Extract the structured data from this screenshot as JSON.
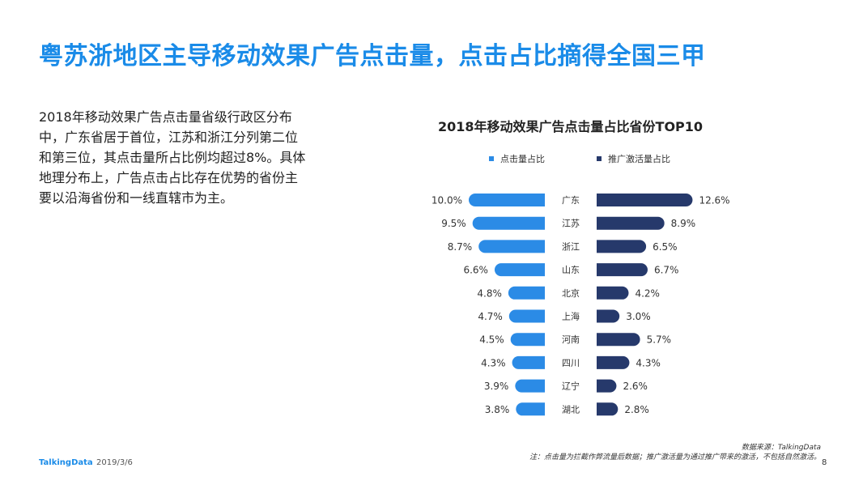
{
  "page": {
    "title": "粤苏浙地区主导移动效果广告点击量，点击占比摘得全国三甲",
    "body_text": "2018年移动效果广告点击量省级行政区分布中，广东省居于首位，江苏和浙江分列第二位和第三位，其点击量所占比例均超过8%。具体地理分布上，广告点击占比存在优势的省份主要以沿海省份和一线直辖市为主。",
    "logo": "TalkingData",
    "date": "2019/3/6",
    "source_line1": "数据来源：TalkingData",
    "source_line2": "注：点击量为拦截作弊流量后数据；推广激活量为通过推广带来的激活，不包括自然激活。",
    "page_number": "8"
  },
  "chart_data": {
    "type": "bar",
    "title": "2018年移动效果广告点击量占比省份TOP10",
    "categories": [
      "广东",
      "江苏",
      "浙江",
      "山东",
      "北京",
      "上海",
      "河南",
      "四川",
      "辽宁",
      "湖北"
    ],
    "series": [
      {
        "name": "点击量占比",
        "color": "#2b8be6",
        "values": [
          10.0,
          9.5,
          8.7,
          6.6,
          4.8,
          4.7,
          4.5,
          4.3,
          3.9,
          3.8
        ],
        "labels": [
          "10.0%",
          "9.5%",
          "8.7%",
          "6.6%",
          "4.8%",
          "4.7%",
          "4.5%",
          "4.3%",
          "3.9%",
          "3.8%"
        ]
      },
      {
        "name": "推广激活量占比",
        "color": "#26396b",
        "values": [
          12.6,
          8.9,
          6.5,
          6.7,
          4.2,
          3.0,
          5.7,
          4.3,
          2.6,
          2.8
        ],
        "labels": [
          "12.6%",
          "8.9%",
          "6.5%",
          "6.7%",
          "4.2%",
          "3.0%",
          "5.7%",
          "4.3%",
          "2.6%",
          "2.8%"
        ]
      }
    ],
    "legend_position": "top",
    "grid": false
  }
}
